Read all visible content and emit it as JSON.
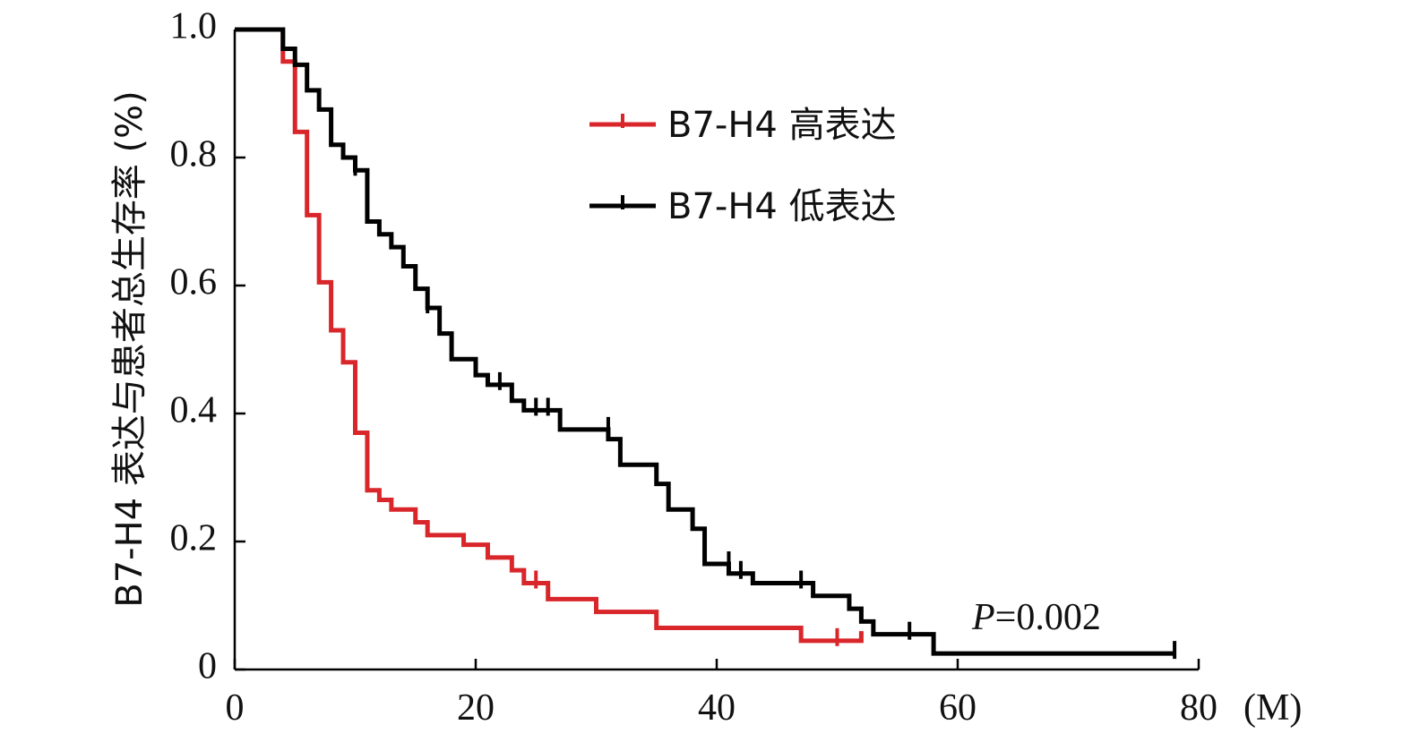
{
  "chart_data": {
    "type": "line",
    "subtype": "step",
    "ylabel": "B7-H4 表达与患者总生存率 (%)",
    "x_unit_label": "(M)",
    "xlim": [
      0,
      80
    ],
    "ylim": [
      0,
      1.0
    ],
    "x_ticks": [
      0,
      20,
      40,
      60,
      80
    ],
    "x_tick_labels": [
      "0",
      "20",
      "40",
      "60",
      "80"
    ],
    "y_ticks": [
      0,
      0.2,
      0.4,
      0.6,
      0.8,
      1.0
    ],
    "y_tick_labels": [
      "0",
      "0.2",
      "0.4",
      "0.6",
      "0.8",
      "1.0"
    ],
    "annotation": {
      "prefix": "P",
      "text": "=0.002"
    },
    "legend_position": "top-center",
    "series": [
      {
        "name": "B7-H4 高表达",
        "color": "#d9262a",
        "x": [
          0,
          4,
          5,
          6,
          7,
          8,
          9,
          10,
          11,
          12,
          13,
          15,
          16,
          19,
          21,
          23,
          24,
          26,
          30,
          35,
          47,
          52
        ],
        "y": [
          1.0,
          0.95,
          0.84,
          0.71,
          0.605,
          0.53,
          0.48,
          0.37,
          0.28,
          0.265,
          0.25,
          0.23,
          0.21,
          0.195,
          0.175,
          0.155,
          0.135,
          0.11,
          0.09,
          0.065,
          0.045,
          0.06
        ],
        "censored": [
          [
            25,
            0.135
          ],
          [
            50,
            0.045
          ]
        ]
      },
      {
        "name": "B7-H4 低表达",
        "color": "#000000",
        "x": [
          0,
          4,
          5,
          6,
          7,
          8,
          9,
          10,
          11,
          12,
          13,
          14,
          15,
          16,
          17,
          18,
          20,
          21,
          23,
          24,
          27,
          31,
          32,
          35,
          36,
          38,
          39,
          41,
          43,
          48,
          51,
          52,
          53,
          58,
          78
        ],
        "y": [
          1.0,
          0.97,
          0.945,
          0.905,
          0.875,
          0.82,
          0.8,
          0.78,
          0.7,
          0.68,
          0.66,
          0.63,
          0.595,
          0.565,
          0.525,
          0.485,
          0.46,
          0.445,
          0.42,
          0.405,
          0.375,
          0.36,
          0.32,
          0.29,
          0.25,
          0.22,
          0.165,
          0.15,
          0.135,
          0.115,
          0.095,
          0.075,
          0.055,
          0.025,
          0.025
        ],
        "censored": [
          [
            10,
            0.78
          ],
          [
            16,
            0.565
          ],
          [
            22,
            0.445
          ],
          [
            25,
            0.405
          ],
          [
            26,
            0.405
          ],
          [
            31,
            0.375
          ],
          [
            41,
            0.165
          ],
          [
            42,
            0.15
          ],
          [
            47,
            0.135
          ],
          [
            56,
            0.055
          ],
          [
            78,
            0.025
          ]
        ]
      }
    ]
  }
}
